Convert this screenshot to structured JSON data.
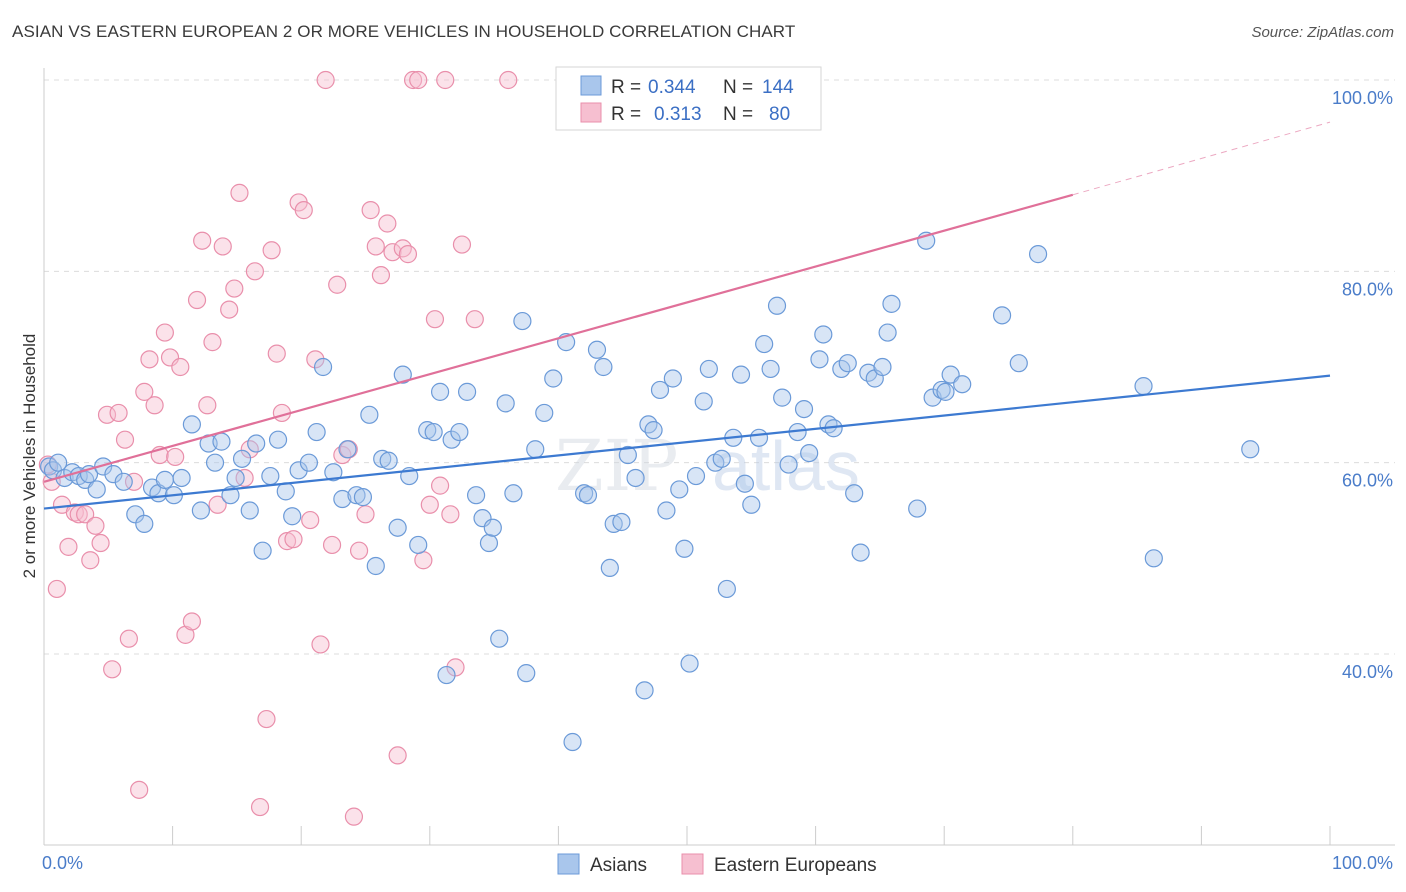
{
  "title": "ASIAN VS EASTERN EUROPEAN 2 OR MORE VEHICLES IN HOUSEHOLD CORRELATION CHART",
  "source": "Source: ZipAtlas.com",
  "watermark": {
    "zip": "ZIP",
    "atlas": "atlas"
  },
  "legend_top": {
    "rows": [
      {
        "r_label": "R =",
        "r_value": "0.344",
        "n_label": "N =",
        "n_value": "144"
      },
      {
        "r_label": "R =",
        "r_value": "0.313",
        "n_label": "N =",
        "n_value": "80"
      }
    ]
  },
  "colors": {
    "asian_fill": "#a9c6ec",
    "asian_stroke": "#6b9ad8",
    "asian_line": "#3d7ad1",
    "ee_fill": "#f6bfd0",
    "ee_stroke": "#e98fab",
    "ee_line": "#e07099",
    "grid": "#dcdcdc",
    "tick": "#4a7cc9"
  },
  "chart_data": {
    "type": "scatter",
    "title": "ASIAN VS EASTERN EUROPEAN 2 OR MORE VEHICLES IN HOUSEHOLD CORRELATION CHART",
    "xlabel": "",
    "ylabel": "2 or more Vehicles in Household",
    "xlim": [
      0,
      100
    ],
    "ylim": [
      20,
      100
    ],
    "x_tick_labels": [
      "0.0%",
      "100.0%"
    ],
    "y_ticks": [
      40,
      60,
      80,
      100
    ],
    "y_tick_labels": [
      "40.0%",
      "60.0%",
      "80.0%",
      "100.0%"
    ],
    "grid": true,
    "legend_position": "bottom",
    "series": [
      {
        "name": "Asians",
        "r": 0.344,
        "n": 144,
        "trend": {
          "x0": 0,
          "y0": 55.2,
          "x1": 100,
          "y1": 69.1
        },
        "points": [
          [
            0.4,
            59.6
          ],
          [
            0.7,
            59.2
          ],
          [
            1.1,
            60.0
          ],
          [
            1.6,
            58.4
          ],
          [
            2.2,
            59.0
          ],
          [
            2.7,
            58.6
          ],
          [
            3.2,
            58.2
          ],
          [
            3.5,
            58.8
          ],
          [
            4.1,
            57.2
          ],
          [
            4.6,
            59.6
          ],
          [
            5.4,
            58.8
          ],
          [
            6.2,
            58.0
          ],
          [
            7.1,
            54.6
          ],
          [
            7.8,
            53.6
          ],
          [
            8.4,
            57.4
          ],
          [
            8.9,
            56.8
          ],
          [
            9.4,
            58.2
          ],
          [
            10.1,
            56.6
          ],
          [
            10.7,
            58.4
          ],
          [
            11.5,
            64.0
          ],
          [
            12.2,
            55.0
          ],
          [
            12.8,
            62.0
          ],
          [
            13.3,
            60.0
          ],
          [
            13.8,
            62.2
          ],
          [
            14.5,
            56.6
          ],
          [
            14.9,
            58.4
          ],
          [
            15.4,
            60.4
          ],
          [
            16.0,
            55.0
          ],
          [
            16.5,
            62.0
          ],
          [
            17.0,
            50.8
          ],
          [
            17.6,
            58.6
          ],
          [
            18.2,
            62.4
          ],
          [
            18.8,
            57.0
          ],
          [
            19.3,
            54.4
          ],
          [
            19.8,
            59.2
          ],
          [
            20.6,
            60.0
          ],
          [
            21.2,
            63.2
          ],
          [
            21.7,
            70.0
          ],
          [
            22.5,
            59.0
          ],
          [
            23.2,
            56.2
          ],
          [
            23.6,
            61.4
          ],
          [
            24.3,
            56.6
          ],
          [
            24.8,
            56.4
          ],
          [
            25.3,
            65.0
          ],
          [
            25.8,
            49.2
          ],
          [
            26.3,
            60.4
          ],
          [
            26.8,
            60.2
          ],
          [
            27.5,
            53.2
          ],
          [
            27.9,
            69.2
          ],
          [
            28.4,
            58.6
          ],
          [
            29.1,
            51.4
          ],
          [
            29.8,
            63.4
          ],
          [
            30.3,
            63.2
          ],
          [
            30.8,
            67.4
          ],
          [
            31.3,
            37.8
          ],
          [
            31.7,
            62.4
          ],
          [
            32.3,
            63.2
          ],
          [
            32.9,
            67.4
          ],
          [
            33.6,
            56.6
          ],
          [
            34.1,
            54.2
          ],
          [
            34.6,
            51.6
          ],
          [
            34.9,
            53.2
          ],
          [
            35.4,
            41.6
          ],
          [
            35.9,
            66.2
          ],
          [
            36.5,
            56.8
          ],
          [
            37.2,
            74.8
          ],
          [
            37.5,
            38.0
          ],
          [
            38.2,
            61.4
          ],
          [
            38.9,
            65.2
          ],
          [
            39.6,
            68.8
          ],
          [
            40.6,
            72.6
          ],
          [
            41.1,
            30.8
          ],
          [
            42.0,
            56.8
          ],
          [
            42.3,
            56.6
          ],
          [
            43.0,
            71.8
          ],
          [
            43.5,
            70.0
          ],
          [
            44.0,
            49.0
          ],
          [
            44.3,
            53.6
          ],
          [
            44.9,
            53.8
          ],
          [
            45.4,
            60.8
          ],
          [
            46.0,
            58.4
          ],
          [
            46.7,
            36.2
          ],
          [
            47.0,
            64.0
          ],
          [
            47.4,
            63.4
          ],
          [
            47.9,
            67.6
          ],
          [
            48.4,
            55.0
          ],
          [
            48.9,
            68.8
          ],
          [
            49.4,
            57.2
          ],
          [
            49.8,
            51.0
          ],
          [
            50.2,
            39.0
          ],
          [
            50.7,
            58.6
          ],
          [
            51.3,
            66.4
          ],
          [
            51.7,
            69.8
          ],
          [
            52.2,
            60.0
          ],
          [
            52.7,
            60.4
          ],
          [
            53.1,
            46.8
          ],
          [
            53.6,
            62.6
          ],
          [
            54.2,
            69.2
          ],
          [
            54.5,
            57.8
          ],
          [
            55.0,
            55.6
          ],
          [
            55.6,
            62.6
          ],
          [
            56.0,
            72.4
          ],
          [
            56.5,
            69.8
          ],
          [
            57.0,
            76.4
          ],
          [
            57.4,
            66.8
          ],
          [
            57.9,
            59.8
          ],
          [
            58.6,
            63.2
          ],
          [
            59.1,
            65.6
          ],
          [
            59.5,
            61.0
          ],
          [
            60.3,
            70.8
          ],
          [
            60.6,
            73.4
          ],
          [
            61.0,
            64.0
          ],
          [
            61.4,
            63.6
          ],
          [
            62.0,
            69.8
          ],
          [
            62.5,
            70.4
          ],
          [
            63.0,
            56.8
          ],
          [
            63.5,
            50.6
          ],
          [
            64.1,
            69.4
          ],
          [
            64.6,
            68.8
          ],
          [
            65.2,
            70.0
          ],
          [
            65.6,
            73.6
          ],
          [
            65.9,
            76.6
          ],
          [
            67.9,
            55.2
          ],
          [
            68.6,
            83.2
          ],
          [
            69.1,
            66.8
          ],
          [
            69.8,
            67.6
          ],
          [
            70.1,
            67.4
          ],
          [
            70.5,
            69.2
          ],
          [
            71.4,
            68.2
          ],
          [
            74.5,
            75.4
          ],
          [
            75.8,
            70.4
          ],
          [
            77.3,
            81.8
          ],
          [
            85.5,
            68.0
          ],
          [
            86.3,
            50.0
          ],
          [
            93.8,
            61.4
          ]
        ]
      },
      {
        "name": "Eastern Europeans",
        "r": 0.313,
        "n": 80,
        "trend": {
          "x0": 0,
          "y0": 58.0,
          "x1": 80,
          "y1": 88.0
        },
        "trend_dashed_to": {
          "x": 100,
          "y": 95.6
        },
        "points": [
          [
            0.3,
            59.8
          ],
          [
            0.6,
            58.0
          ],
          [
            1.0,
            46.8
          ],
          [
            1.4,
            55.6
          ],
          [
            1.9,
            51.2
          ],
          [
            2.4,
            54.8
          ],
          [
            2.7,
            54.6
          ],
          [
            3.2,
            54.6
          ],
          [
            3.6,
            49.8
          ],
          [
            4.0,
            53.4
          ],
          [
            4.4,
            51.6
          ],
          [
            4.9,
            65.0
          ],
          [
            5.3,
            38.4
          ],
          [
            5.8,
            65.2
          ],
          [
            6.3,
            62.4
          ],
          [
            6.6,
            41.6
          ],
          [
            7.0,
            58.0
          ],
          [
            7.4,
            25.8
          ],
          [
            7.8,
            67.4
          ],
          [
            8.2,
            70.8
          ],
          [
            8.6,
            66.0
          ],
          [
            9.0,
            60.8
          ],
          [
            9.4,
            73.6
          ],
          [
            9.8,
            71.0
          ],
          [
            10.2,
            60.6
          ],
          [
            10.6,
            70.0
          ],
          [
            11.0,
            42.0
          ],
          [
            11.5,
            43.4
          ],
          [
            11.9,
            77.0
          ],
          [
            12.3,
            83.2
          ],
          [
            12.7,
            66.0
          ],
          [
            13.1,
            72.6
          ],
          [
            13.5,
            55.6
          ],
          [
            13.9,
            82.6
          ],
          [
            14.4,
            76.0
          ],
          [
            14.8,
            78.2
          ],
          [
            15.2,
            88.2
          ],
          [
            15.6,
            58.4
          ],
          [
            16.0,
            61.4
          ],
          [
            16.4,
            80.0
          ],
          [
            16.8,
            24.0
          ],
          [
            17.3,
            33.2
          ],
          [
            17.7,
            82.2
          ],
          [
            18.1,
            71.4
          ],
          [
            18.5,
            65.2
          ],
          [
            18.9,
            51.8
          ],
          [
            19.4,
            52.0
          ],
          [
            19.8,
            87.2
          ],
          [
            20.2,
            86.4
          ],
          [
            20.7,
            54.0
          ],
          [
            21.1,
            70.8
          ],
          [
            21.5,
            41.0
          ],
          [
            21.9,
            100.0
          ],
          [
            22.4,
            51.4
          ],
          [
            22.8,
            78.6
          ],
          [
            23.2,
            60.8
          ],
          [
            23.7,
            61.4
          ],
          [
            24.1,
            23.0
          ],
          [
            24.5,
            50.8
          ],
          [
            25.0,
            54.6
          ],
          [
            25.4,
            86.4
          ],
          [
            25.8,
            82.6
          ],
          [
            26.2,
            79.6
          ],
          [
            26.7,
            85.0
          ],
          [
            27.1,
            82.0
          ],
          [
            27.5,
            29.4
          ],
          [
            27.9,
            82.4
          ],
          [
            28.3,
            81.8
          ],
          [
            28.7,
            100.0
          ],
          [
            29.1,
            100.0
          ],
          [
            29.5,
            49.8
          ],
          [
            30.0,
            55.6
          ],
          [
            30.4,
            75.0
          ],
          [
            30.8,
            57.6
          ],
          [
            31.2,
            100.0
          ],
          [
            31.6,
            54.6
          ],
          [
            32.0,
            38.6
          ],
          [
            32.5,
            82.8
          ],
          [
            33.5,
            75.0
          ],
          [
            36.1,
            100.0
          ]
        ]
      }
    ]
  },
  "bottom_legend": [
    {
      "label": "Asians"
    },
    {
      "label": "Eastern Europeans"
    }
  ]
}
